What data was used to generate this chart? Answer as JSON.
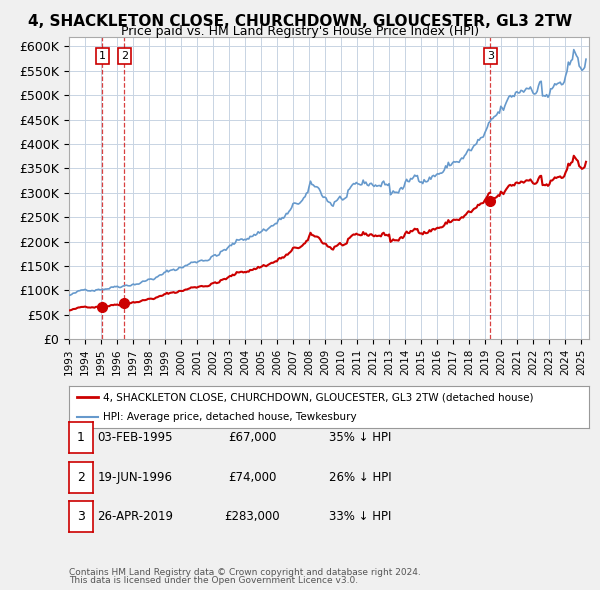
{
  "title": "4, SHACKLETON CLOSE, CHURCHDOWN, GLOUCESTER, GL3 2TW",
  "subtitle": "Price paid vs. HM Land Registry's House Price Index (HPI)",
  "xlim": [
    1993.0,
    2025.5
  ],
  "ylim": [
    0,
    620000
  ],
  "yticks": [
    0,
    50000,
    100000,
    150000,
    200000,
    250000,
    300000,
    350000,
    400000,
    450000,
    500000,
    550000,
    600000
  ],
  "ytick_labels": [
    "£0",
    "£50K",
    "£100K",
    "£150K",
    "£200K",
    "£250K",
    "£300K",
    "£350K",
    "£400K",
    "£450K",
    "£500K",
    "£550K",
    "£600K"
  ],
  "xticks": [
    1993,
    1994,
    1995,
    1996,
    1997,
    1998,
    1999,
    2000,
    2001,
    2002,
    2003,
    2004,
    2005,
    2006,
    2007,
    2008,
    2009,
    2010,
    2011,
    2012,
    2013,
    2014,
    2015,
    2016,
    2017,
    2018,
    2019,
    2020,
    2021,
    2022,
    2023,
    2024,
    2025
  ],
  "background_color": "#f0f0f0",
  "plot_bg_color": "#ffffff",
  "grid_color": "#c8d4e3",
  "sale_color": "#cc0000",
  "hpi_color": "#6699cc",
  "vline_color": "#cc0000",
  "legend_label_sale": "4, SHACKLETON CLOSE, CHURCHDOWN, GLOUCESTER, GL3 2TW (detached house)",
  "legend_label_hpi": "HPI: Average price, detached house, Tewkesbury",
  "transactions": [
    {
      "num": 1,
      "date": 1995.085,
      "price": 67000,
      "label": "03-FEB-1995",
      "pct": "35%",
      "dir": "↓"
    },
    {
      "num": 2,
      "date": 1996.46,
      "price": 74000,
      "label": "19-JUN-1996",
      "pct": "26%",
      "dir": "↓"
    },
    {
      "num": 3,
      "date": 2019.32,
      "price": 283000,
      "label": "26-APR-2019",
      "pct": "33%",
      "dir": "↓"
    }
  ],
  "footer1": "Contains HM Land Registry data © Crown copyright and database right 2024.",
  "footer2": "This data is licensed under the Open Government Licence v3.0."
}
